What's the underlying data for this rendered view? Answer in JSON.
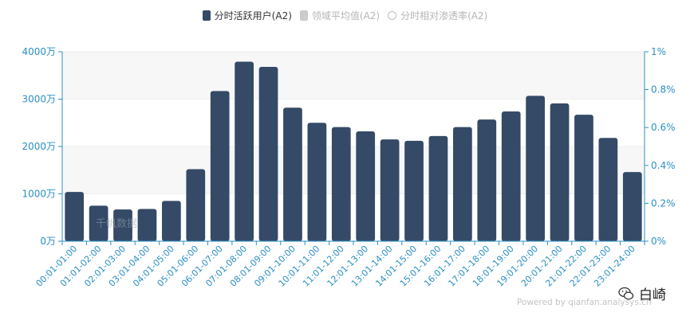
{
  "legend": {
    "items": [
      {
        "label": "分时活跃用户(A2)",
        "active": true
      },
      {
        "label": "领域平均值(A2)",
        "active": false
      },
      {
        "label": "分时相对渗透率(A2)",
        "active": false
      }
    ]
  },
  "watermark": "千帆数据",
  "powered_by": "Powered by qianfan.analysys.cn",
  "brand": {
    "name": "白崎"
  },
  "colors": {
    "bar": "#344A66",
    "axis": "#2B8FC6",
    "grid": "#eeeeee",
    "band": "#f7f7f7"
  },
  "chart_data": {
    "type": "bar",
    "categories": [
      "00:01-01:00",
      "01:01-02:00",
      "02:01-03:00",
      "03:01-04:00",
      "04:01-05:00",
      "05:01-06:00",
      "06:01-07:00",
      "07:01-08:00",
      "08:01-09:00",
      "09:01-10:00",
      "10:01-11:00",
      "11:01-12:00",
      "12:01-13:00",
      "13:01-14:00",
      "14:01-15:00",
      "15:01-16:00",
      "16:01-17:00",
      "17:01-18:00",
      "18:01-19:00",
      "19:01-20:00",
      "20:01-21:00",
      "21:01-22:00",
      "22:01-23:00",
      "23:01-24:00"
    ],
    "series": [
      {
        "name": "分时活跃用户(A2)",
        "values": [
          1040,
          750,
          670,
          680,
          850,
          1520,
          3170,
          3790,
          3680,
          2820,
          2500,
          2410,
          2320,
          2150,
          2120,
          2220,
          2410,
          2570,
          2740,
          3070,
          2910,
          2670,
          2180,
          1460
        ]
      }
    ],
    "y_left": {
      "ticks": [
        "0万",
        "1000万",
        "2000万",
        "3000万",
        "4000万"
      ],
      "min": 0,
      "max": 4000
    },
    "y_right": {
      "ticks": [
        "0%",
        "0.2%",
        "0.4%",
        "0.6%",
        "0.8%",
        "1%"
      ],
      "min": 0,
      "max": 1
    },
    "grid": true
  }
}
